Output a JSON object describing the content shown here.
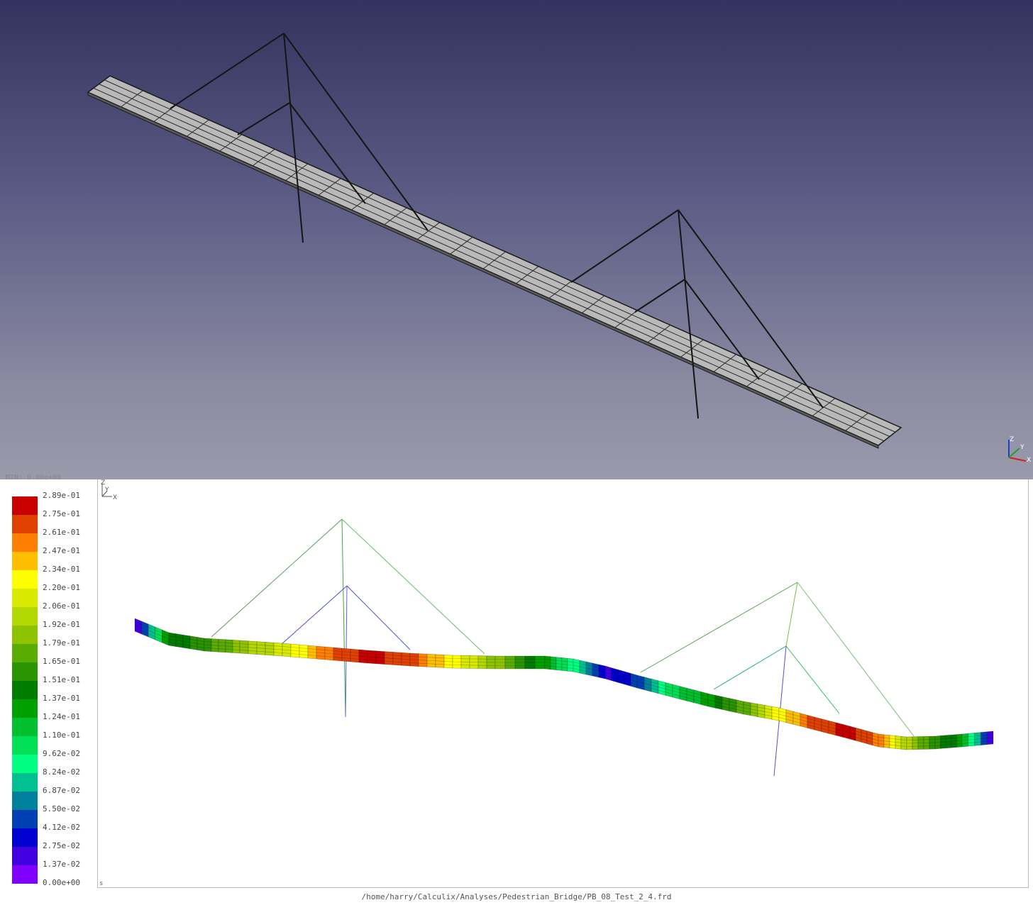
{
  "top_view": {
    "background_top": "#33335f",
    "background_bottom": "#9a9aac",
    "deck_color": "#b9b9b9",
    "cable_color": "#151515",
    "axis_labels": {
      "z": "Z",
      "y": "Y",
      "x": "X"
    }
  },
  "bottom_view": {
    "legend_min_text": "MIN: 0.00e+00",
    "legend": {
      "labels": [
        "2.89e-01",
        "2.75e-01",
        "2.61e-01",
        "2.47e-01",
        "2.34e-01",
        "2.20e-01",
        "2.06e-01",
        "1.92e-01",
        "1.79e-01",
        "1.65e-01",
        "1.51e-01",
        "1.37e-01",
        "1.24e-01",
        "1.10e-01",
        "9.62e-02",
        "8.24e-02",
        "6.87e-02",
        "5.50e-02",
        "4.12e-02",
        "2.75e-02",
        "1.37e-02",
        "0.00e+00"
      ],
      "colors": [
        "#c80000",
        "#e04000",
        "#ff7f00",
        "#ffbf00",
        "#ffff00",
        "#d7ea00",
        "#b2d800",
        "#8dc300",
        "#5aad00",
        "#2a9300",
        "#007c00",
        "#00a000",
        "#00c030",
        "#00df55",
        "#00ff80",
        "#00c092",
        "#00809a",
        "#0040b4",
        "#0000d0",
        "#4000e0",
        "#8000ff"
      ]
    },
    "axis_labels": {
      "z": "Z",
      "y": "Y",
      "x": "X"
    },
    "corner_label": "s",
    "file_path": "/home/harry/Calculix/Analyses/Pedestrian_Bridge/PB_08_Test_2_4.frd"
  }
}
